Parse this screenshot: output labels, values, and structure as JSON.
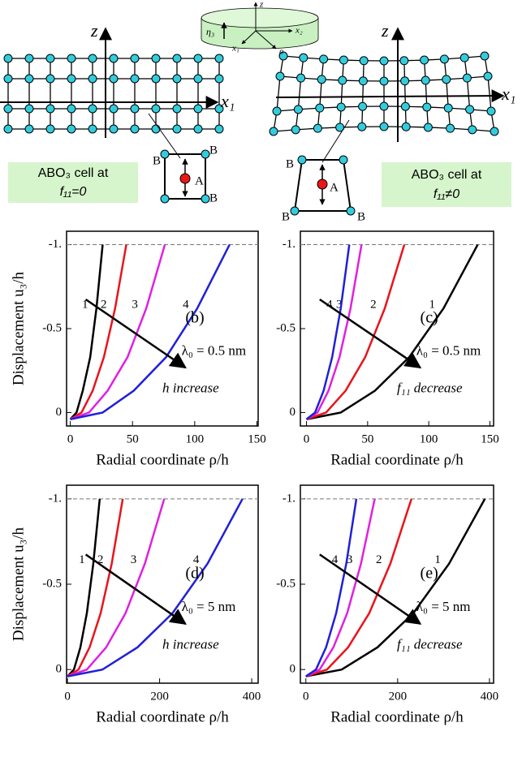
{
  "diagram": {
    "left_z": "z",
    "left_x": "x₁",
    "right_z": "z",
    "right_x": "x₁",
    "cyl_z": "z",
    "cyl_x2": "x₂",
    "cyl_x1": "x₁",
    "cyl_rho": "ρ",
    "cyl_eta": "η₃",
    "left_box": [
      "ABO₃ cell at",
      "f₁₁=0"
    ],
    "right_box": [
      "ABO₃ cell at",
      "f₁₁≠0"
    ],
    "left_cell": {
      "b": [
        "B",
        "B",
        "B"
      ],
      "a": "A"
    },
    "right_cell": {
      "b": [
        "B",
        "B",
        "B"
      ],
      "a": "A"
    }
  },
  "chart_data": [
    {
      "type": "line",
      "title": "(b)",
      "param": "λ₀ = 0.5 nm",
      "trend": "h  increase",
      "ylabel": "Displacement  u₃/h",
      "xlabel": "Radial coordinate ρ/h",
      "xlim": [
        -3,
        151
      ],
      "xticks": [
        0,
        50,
        100,
        150
      ],
      "ylim": [
        0.08,
        -1.08
      ],
      "yticks": [
        0,
        -0.5,
        {
          "value": -1,
          "label": "-1."
        }
      ],
      "hline": -1,
      "series": [
        {
          "name": "1",
          "color": "#000000",
          "x": [
            0,
            5,
            10,
            16,
            21,
            26
          ],
          "values": [
            0.04,
            0.0,
            -0.13,
            -0.33,
            -0.62,
            -1.0
          ]
        },
        {
          "name": "2",
          "color": "#e8141c",
          "x": [
            0,
            9,
            18,
            27,
            36,
            45
          ],
          "values": [
            0.04,
            0.0,
            -0.13,
            -0.33,
            -0.62,
            -1.0
          ]
        },
        {
          "name": "3",
          "color": "#e020e0",
          "x": [
            0,
            15,
            30,
            46,
            61,
            76
          ],
          "values": [
            0.04,
            0.0,
            -0.13,
            -0.33,
            -0.62,
            -1.0
          ]
        },
        {
          "name": "4",
          "color": "#2020d8",
          "x": [
            0,
            26,
            51,
            77,
            102,
            128
          ],
          "values": [
            0.04,
            0.0,
            -0.13,
            -0.33,
            -0.62,
            -1.0
          ]
        }
      ]
    },
    {
      "type": "line",
      "title": "(c)",
      "param": "λ₀ = 0.5 nm",
      "trend": "f₁₁ decrease",
      "xlabel": "Radial coordinate ρ/h",
      "xlim": [
        -5,
        153
      ],
      "xticks": [
        0,
        50,
        100,
        150
      ],
      "ylim": [
        0.08,
        -1.08
      ],
      "yticks": [
        0,
        -0.5,
        {
          "value": -1,
          "label": "-1."
        }
      ],
      "hline": -1,
      "series": [
        {
          "name": "1",
          "color": "#000000",
          "x": [
            0,
            28,
            56,
            84,
            112,
            140
          ],
          "values": [
            0.04,
            0.0,
            -0.13,
            -0.33,
            -0.62,
            -1.0
          ]
        },
        {
          "name": "2",
          "color": "#e8141c",
          "x": [
            0,
            16,
            32,
            48,
            64,
            80
          ],
          "values": [
            0.04,
            0.0,
            -0.13,
            -0.33,
            -0.62,
            -1.0
          ]
        },
        {
          "name": "3",
          "color": "#e020e0",
          "x": [
            0,
            9,
            18,
            27,
            36,
            45
          ],
          "values": [
            0.04,
            0.0,
            -0.13,
            -0.33,
            -0.62,
            -1.0
          ]
        },
        {
          "name": "4",
          "color": "#2020d8",
          "x": [
            0,
            7,
            14,
            21,
            28,
            35
          ],
          "values": [
            0.04,
            0.0,
            -0.13,
            -0.33,
            -0.62,
            -1.0
          ]
        }
      ]
    },
    {
      "type": "line",
      "title": "(d)",
      "param": "λ₀ = 5 nm",
      "trend": "h  increase",
      "ylabel": "Displacement  u₃/h",
      "xlabel": "Radial coordinate ρ/h",
      "xlim": [
        -2,
        414
      ],
      "xticks": [
        0,
        200,
        400
      ],
      "ylim": [
        0.08,
        -1.08
      ],
      "yticks": [
        0,
        -0.5,
        {
          "value": -1,
          "label": "-1."
        }
      ],
      "hline": -1,
      "series": [
        {
          "name": "1",
          "color": "#000000",
          "x": [
            0,
            14,
            28,
            42,
            56,
            70
          ],
          "values": [
            0.04,
            0.0,
            -0.13,
            -0.33,
            -0.62,
            -1.0
          ]
        },
        {
          "name": "2",
          "color": "#e8141c",
          "x": [
            0,
            24,
            48,
            72,
            96,
            120
          ],
          "values": [
            0.04,
            0.0,
            -0.13,
            -0.33,
            -0.62,
            -1.0
          ]
        },
        {
          "name": "3",
          "color": "#e020e0",
          "x": [
            0,
            42,
            84,
            126,
            168,
            210
          ],
          "values": [
            0.04,
            0.0,
            -0.13,
            -0.33,
            -0.62,
            -1.0
          ]
        },
        {
          "name": "4",
          "color": "#2020d8",
          "x": [
            0,
            76,
            152,
            228,
            304,
            380
          ],
          "values": [
            0.04,
            0.0,
            -0.13,
            -0.33,
            -0.62,
            -1.0
          ]
        }
      ]
    },
    {
      "type": "line",
      "title": "(e)",
      "param": "λ₀ = 5 nm",
      "trend": "f₁₁ decrease",
      "xlabel": "Radial coordinate ρ/h",
      "xlim": [
        -12,
        409
      ],
      "xticks": [
        0,
        200,
        400
      ],
      "ylim": [
        0.08,
        -1.08
      ],
      "yticks": [
        0,
        -0.5,
        {
          "value": -1,
          "label": "-1."
        }
      ],
      "hline": -1,
      "series": [
        {
          "name": "1",
          "color": "#000000",
          "x": [
            0,
            78,
            156,
            234,
            312,
            390
          ],
          "values": [
            0.04,
            0.0,
            -0.13,
            -0.33,
            -0.62,
            -1.0
          ]
        },
        {
          "name": "2",
          "color": "#e8141c",
          "x": [
            0,
            46,
            92,
            138,
            184,
            230
          ],
          "values": [
            0.04,
            0.0,
            -0.13,
            -0.33,
            -0.62,
            -1.0
          ]
        },
        {
          "name": "3",
          "color": "#e020e0",
          "x": [
            0,
            30,
            60,
            90,
            120,
            150
          ],
          "values": [
            0.04,
            0.0,
            -0.13,
            -0.33,
            -0.62,
            -1.0
          ]
        },
        {
          "name": "4",
          "color": "#2020d8",
          "x": [
            0,
            22,
            44,
            66,
            88,
            110
          ],
          "values": [
            0.04,
            0.0,
            -0.13,
            -0.33,
            -0.62,
            -1.0
          ]
        }
      ]
    }
  ]
}
